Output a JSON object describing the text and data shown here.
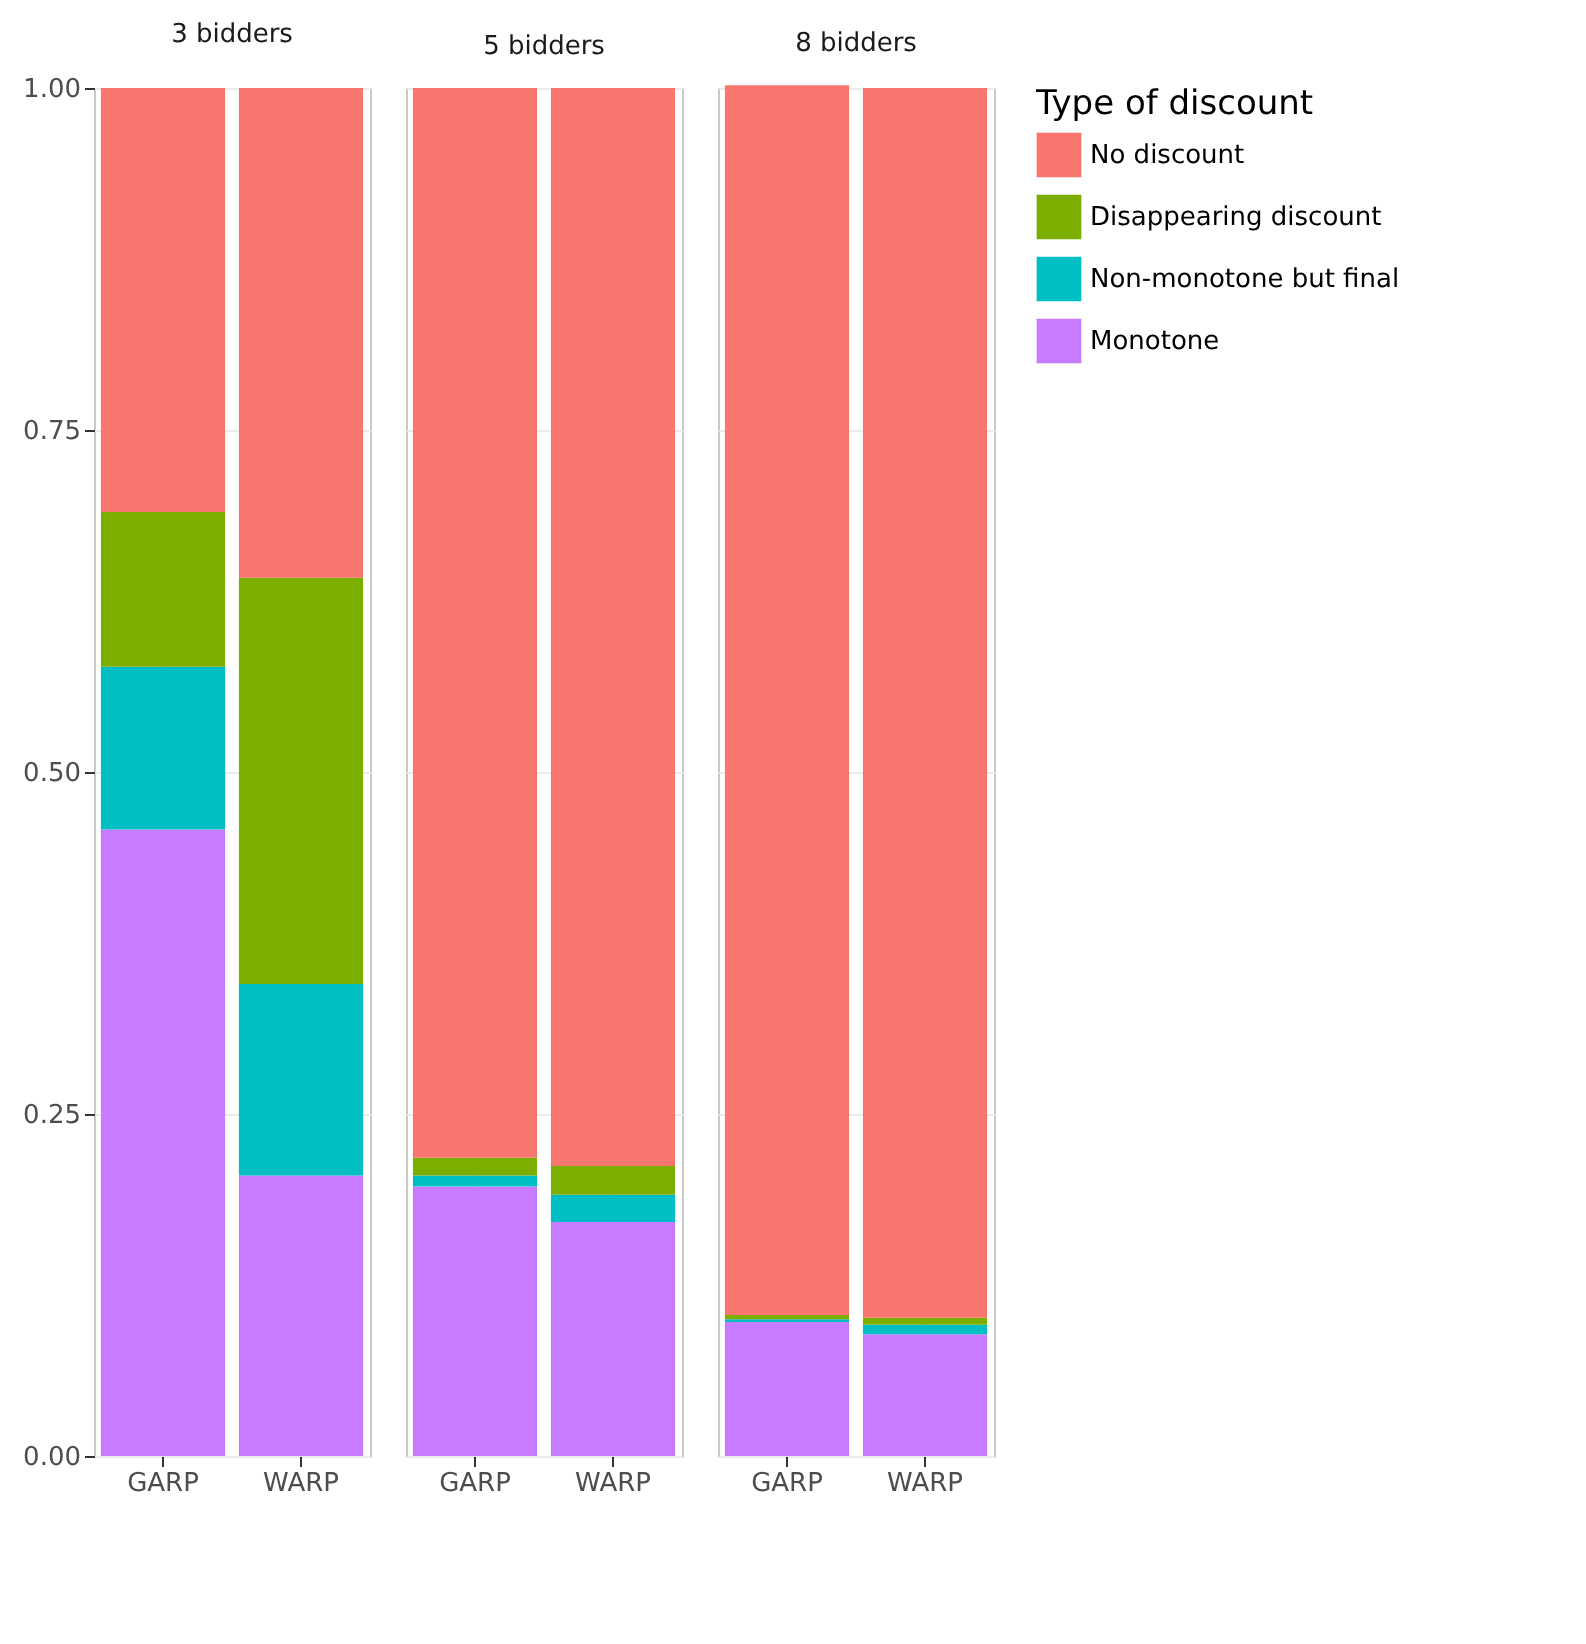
{
  "chart_data": [
    {
      "type": "bar",
      "title": "3 bidders",
      "stacked": true,
      "grid": true,
      "legend": "right",
      "legend_title": "Type of discount",
      "categories": [
        "GARP",
        "WARP"
      ],
      "ylim": [
        0,
        1
      ],
      "yticks": [
        {
          "value": 0,
          "label": "0.00"
        },
        {
          "value": 0.25,
          "label": "0.25"
        },
        {
          "value": 0.5,
          "label": "0.50"
        },
        {
          "value": 0.75,
          "label": "0.75"
        },
        {
          "value": 1,
          "label": "1.00"
        }
      ],
      "series": [
        {
          "name": "Monotone",
          "color": "#c77cff",
          "values": [
            0.458,
            0.205
          ]
        },
        {
          "name": "Non-monotone but final",
          "color": "#00bfc4",
          "values": [
            0.119,
            0.14
          ]
        },
        {
          "name": "Disappearing discount",
          "color": "#7cae00",
          "values": [
            0.113,
            0.297
          ]
        },
        {
          "name": "No discount",
          "color": "#f8766d",
          "values": [
            0.31,
            0.358
          ]
        }
      ]
    },
    {
      "type": "bar",
      "title": "5 bidders",
      "stacked": true,
      "grid": true,
      "tick_labels": "x",
      "categories": [
        "GARP",
        "WARP"
      ],
      "ylim": [
        0,
        1
      ],
      "yticks": [
        0,
        0.25,
        0.5,
        0.75,
        1
      ],
      "series": [
        {
          "name": "Monotone",
          "color": "#c77cff",
          "values": [
            0.197,
            0.171
          ]
        },
        {
          "name": "Non-monotone but final",
          "color": "#00bfc4",
          "values": [
            0.008,
            0.02
          ]
        },
        {
          "name": "Disappearing discount",
          "color": "#7cae00",
          "values": [
            0.013,
            0.021
          ]
        },
        {
          "name": "No discount",
          "color": "#f8766d",
          "values": [
            0.782,
            0.788
          ]
        }
      ]
    },
    {
      "type": "bar",
      "title": "8 bidders",
      "stacked": true,
      "grid": true,
      "tick_labels": "x",
      "categories": [
        "GARP",
        "WARP"
      ],
      "ylim": [
        0,
        1
      ],
      "yticks": [
        0,
        0.25,
        0.5,
        0.75,
        1
      ],
      "series": [
        {
          "name": "Monotone",
          "color": "#c77cff",
          "values": [
            0.098,
            0.089
          ]
        },
        {
          "name": "Non-monotone but final",
          "color": "#00bfc4",
          "values": [
            0.002,
            0.007
          ]
        },
        {
          "name": "Disappearing discount",
          "color": "#7cae00",
          "values": [
            0.003,
            0.005
          ]
        },
        {
          "name": "No discount",
          "color": "#f8766d",
          "values": [
            0.899,
            0.899
          ]
        }
      ]
    }
  ]
}
